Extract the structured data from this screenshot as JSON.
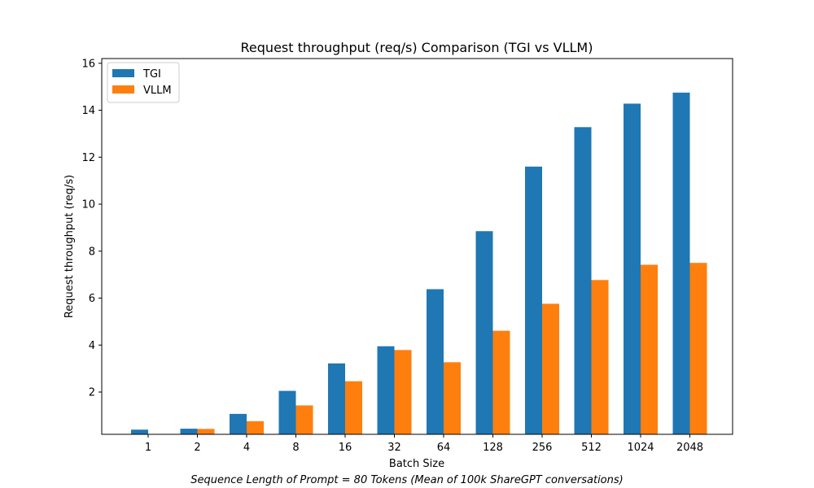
{
  "chart_data": {
    "type": "bar",
    "title": "Request throughput (req/s) Comparison (TGI vs VLLM)",
    "xlabel": "Batch Size",
    "ylabel": "Request throughput (req/s)",
    "caption": "Sequence Length of Prompt = 80 Tokens (Mean of 100k ShareGPT conversations)",
    "categories": [
      "1",
      "2",
      "4",
      "8",
      "16",
      "32",
      "64",
      "128",
      "256",
      "512",
      "1024",
      "2048"
    ],
    "series": [
      {
        "name": "TGI",
        "color": "#1f77b4",
        "values": [
          0.4,
          0.44,
          1.07,
          2.05,
          3.22,
          3.95,
          6.38,
          8.85,
          11.6,
          13.28,
          14.28,
          14.75
        ]
      },
      {
        "name": "VLLM",
        "color": "#ff7f0e",
        "values": [
          0.18,
          0.43,
          0.76,
          1.43,
          2.46,
          3.79,
          3.27,
          4.61,
          5.76,
          6.77,
          7.42,
          7.5
        ]
      }
    ],
    "ylim": [
      0.2,
      16.2
    ],
    "yticks": [
      2,
      4,
      6,
      8,
      10,
      12,
      14,
      16
    ],
    "legend_position": "upper-left",
    "grid": false
  }
}
